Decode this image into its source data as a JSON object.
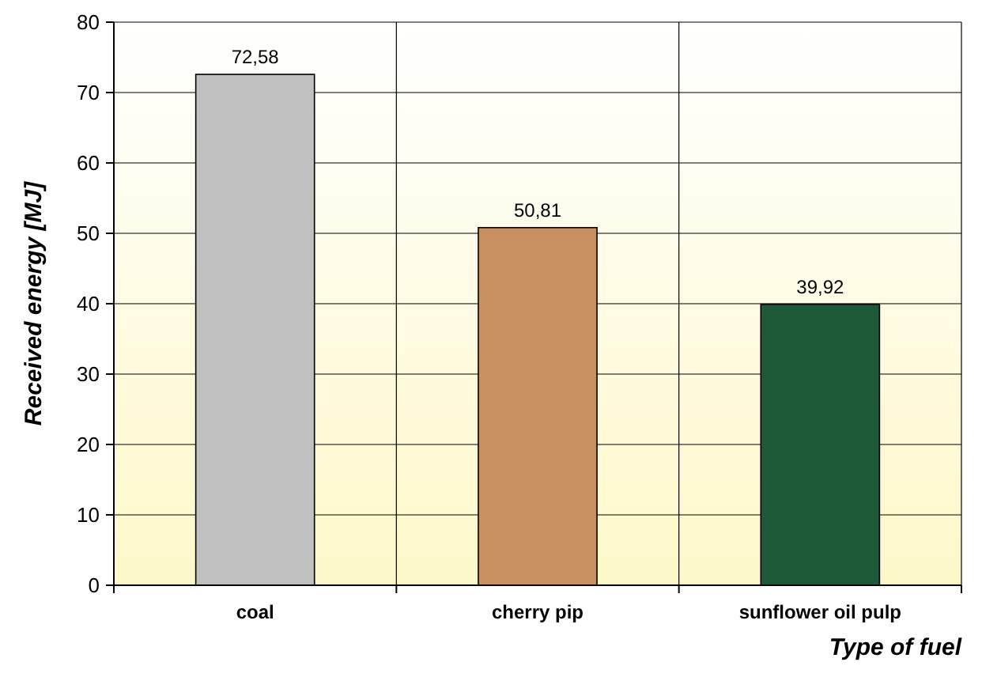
{
  "chart_data": {
    "type": "bar",
    "ylabel": "Received energy  [MJ]",
    "xlabel": "Type of fuel",
    "categories": [
      "coal",
      "cherry pip",
      "sunflower oil pulp"
    ],
    "values": [
      72.58,
      50.81,
      39.92
    ],
    "colors": [
      "#c0c0c0",
      "#c89060",
      "#1f5a38"
    ],
    "value_labels": [
      "72,58",
      "50,81",
      "39,92"
    ],
    "ylim": [
      0,
      80
    ],
    "yticks": [
      0,
      10,
      20,
      30,
      40,
      50,
      60,
      70,
      80
    ],
    "grid": true
  }
}
